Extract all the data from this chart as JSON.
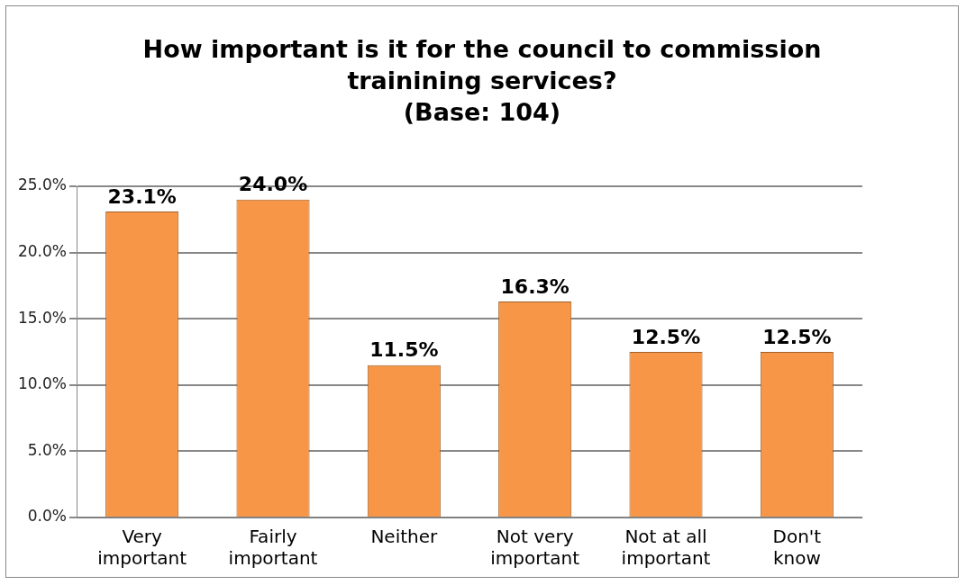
{
  "chart_data": {
    "type": "bar",
    "title": "How important is it for the council to commission trainining services?",
    "subtitle": "(Base: 104)",
    "categories": [
      "Very important",
      "Fairly important",
      "Neither",
      "Not very important",
      "Not at all important",
      "Don't know"
    ],
    "values": [
      23.1,
      24.0,
      11.5,
      16.3,
      12.5,
      12.5
    ],
    "value_labels": [
      "23.1%",
      "24.0%",
      "11.5%",
      "16.3%",
      "12.5%",
      "12.5%"
    ],
    "color": "#f79646",
    "ylim": [
      0,
      25
    ],
    "yticks": [
      {
        "value": 0,
        "label": "0.0%"
      },
      {
        "value": 5,
        "label": "5.0%"
      },
      {
        "value": 10,
        "label": "10.0%"
      },
      {
        "value": 15,
        "label": "15.0%"
      },
      {
        "value": 20,
        "label": "20.0%"
      },
      {
        "value": 25,
        "label": "25.0%"
      }
    ],
    "grid": "y",
    "legend": false
  }
}
